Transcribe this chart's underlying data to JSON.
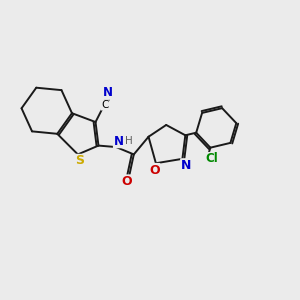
{
  "background_color": "#ebebeb",
  "figsize": [
    3.0,
    3.0
  ],
  "dpi": 100,
  "atom_colors": {
    "C": "#000000",
    "N": "#0000cc",
    "O": "#cc0000",
    "S": "#ccaa00",
    "Cl": "#008800",
    "H": "#606060"
  },
  "bond_color": "#1a1a1a",
  "bond_width": 1.4,
  "xlim": [
    0,
    10
  ],
  "ylim": [
    0,
    10
  ]
}
